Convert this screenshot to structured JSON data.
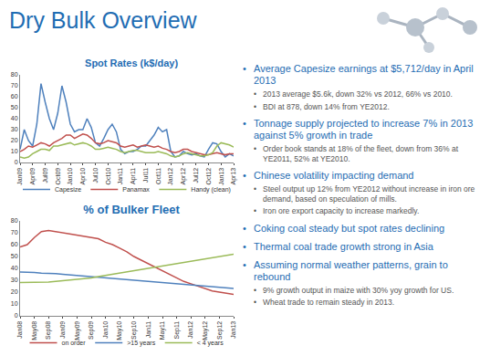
{
  "slide": {
    "title": "Dry Bulk Overview",
    "bullets": [
      {
        "text": "Average Capesize earnings at $5,712/day in April 2013",
        "sub": [
          "2013 average $5.6k, down 32% vs 2012, 66% vs 2010.",
          "BDI at 878, down 14% from YE2012."
        ]
      },
      {
        "text": "Tonnage supply projected to increase 7% in 2013 against 5% growth in trade",
        "sub": [
          "Order book stands at 18% of the fleet, down from 36% at YE2011, 52% at YE2010."
        ]
      },
      {
        "text": "Chinese volatility impacting demand",
        "sub": [
          "Steel output up 12% from YE2012 without increase in iron ore demand, based on speculation of mills.",
          "Iron ore export capacity to increase markedly."
        ]
      },
      {
        "text": "Coking coal steady but spot rates declining",
        "sub": []
      },
      {
        "text": "Thermal coal trade growth strong in Asia",
        "sub": []
      },
      {
        "text": "Assuming normal weather patterns, grain to rebound",
        "sub": [
          "9% growth output in maize with 30% yoy growth for US.",
          "Wheat trade to remain steady in 2013."
        ]
      }
    ]
  },
  "chart_data": [
    {
      "type": "line",
      "title": "Spot Rates (k$/day)",
      "categories": [
        "Jan09",
        null,
        null,
        "Apr09",
        null,
        null,
        "Jul09",
        null,
        null,
        "Oct09",
        null,
        null,
        "Jan10",
        null,
        null,
        "Apr10",
        null,
        null,
        "Jul10",
        null,
        null,
        "Oct10",
        null,
        null,
        "Jan11",
        null,
        null,
        "Apr11",
        null,
        null,
        "Jul11",
        null,
        null,
        "Oct11",
        null,
        null,
        "Jan12",
        null,
        null,
        "Apr12",
        null,
        null,
        "Jul12",
        null,
        null,
        "Oct12",
        null,
        null,
        "Jan13",
        null,
        null,
        "Apr13"
      ],
      "series": [
        {
          "name": "Capesize",
          "color": "#4f81bd",
          "line_style": "solid",
          "values": [
            12,
            30,
            20,
            15,
            35,
            72,
            55,
            40,
            30,
            45,
            70,
            55,
            35,
            28,
            30,
            30,
            40,
            32,
            18,
            15,
            22,
            30,
            35,
            28,
            12,
            8,
            10,
            10,
            12,
            15,
            15,
            20,
            25,
            32,
            28,
            30,
            10,
            5,
            6,
            10,
            8,
            7,
            8,
            6,
            5,
            12,
            18,
            17,
            10,
            5,
            8,
            6
          ]
        },
        {
          "name": "Panamax",
          "color": "#c0504d",
          "line_style": "solid",
          "values": [
            10,
            12,
            15,
            14,
            16,
            18,
            17,
            15,
            18,
            20,
            22,
            25,
            25,
            22,
            24,
            26,
            25,
            22,
            18,
            17,
            18,
            20,
            19,
            18,
            15,
            14,
            15,
            16,
            14,
            15,
            16,
            15,
            14,
            15,
            13,
            12,
            10,
            9,
            10,
            12,
            12,
            10,
            9,
            8,
            7,
            7,
            8,
            9,
            8,
            7,
            8,
            8
          ]
        },
        {
          "name": "Handy (clean)",
          "color": "#9bbb59",
          "line_style": "solid",
          "values": [
            5,
            4,
            5,
            8,
            10,
            12,
            12,
            11,
            15,
            15,
            16,
            17,
            18,
            16,
            17,
            18,
            17,
            15,
            12,
            12,
            13,
            14,
            13,
            12,
            10,
            9,
            10,
            11,
            11,
            10,
            9,
            9,
            9,
            10,
            9,
            8,
            6,
            5,
            6,
            8,
            9,
            8,
            7,
            6,
            6,
            7,
            9,
            15,
            18,
            17,
            16,
            14
          ]
        }
      ],
      "ylim": [
        0,
        80
      ],
      "yticks": [
        0,
        10,
        20,
        30,
        40,
        50,
        60,
        70,
        80
      ],
      "grid": false,
      "legend": "bottom"
    },
    {
      "type": "line",
      "title": "% of Bulker Fleet",
      "categories": [
        "Jan08",
        null,
        "May08",
        null,
        "Sep08",
        null,
        "Jan09",
        null,
        "May09",
        null,
        "Sep09",
        null,
        "Jan10",
        null,
        "May10",
        null,
        "Sep10",
        null,
        "Jan11",
        null,
        "May11",
        null,
        "Sep11",
        null,
        "Jan12",
        null,
        "May12",
        null,
        "Sep12",
        null,
        "Jan13"
      ],
      "series": [
        {
          "name": "on order",
          "color": "#c0504d",
          "line_style": "solid",
          "values": [
            58,
            60,
            66,
            71,
            72,
            71,
            70,
            69,
            68,
            67,
            66,
            65,
            62,
            60,
            57,
            54,
            50,
            47,
            44,
            41,
            38,
            35,
            32,
            29,
            27,
            25,
            23,
            21,
            20,
            19,
            18
          ]
        },
        {
          "name": ">15 years",
          "color": "#4f81bd",
          "line_style": "solid",
          "values": [
            37,
            37,
            36.5,
            36,
            36,
            35.5,
            35,
            34.5,
            34,
            33,
            33,
            32.5,
            32,
            31.5,
            31,
            30.5,
            30,
            29.5,
            29,
            28.5,
            28,
            27.5,
            27,
            26.5,
            26,
            25.5,
            25,
            24.5,
            24,
            23.5,
            23
          ]
        },
        {
          "name": "< 4 years",
          "color": "#9bbb59",
          "line_style": "solid",
          "values": [
            28,
            28,
            28,
            28,
            28.5,
            29,
            29.5,
            30,
            31,
            31.5,
            32,
            33,
            34,
            35,
            36,
            37,
            38,
            39,
            40,
            41,
            42,
            43,
            44,
            45,
            46,
            47,
            48,
            49,
            50,
            51,
            52
          ]
        }
      ],
      "ylim": [
        0,
        80
      ],
      "yticks": [
        0,
        10,
        20,
        30,
        40,
        50,
        60,
        70,
        80
      ],
      "grid": false,
      "legend": "bottom"
    }
  ]
}
